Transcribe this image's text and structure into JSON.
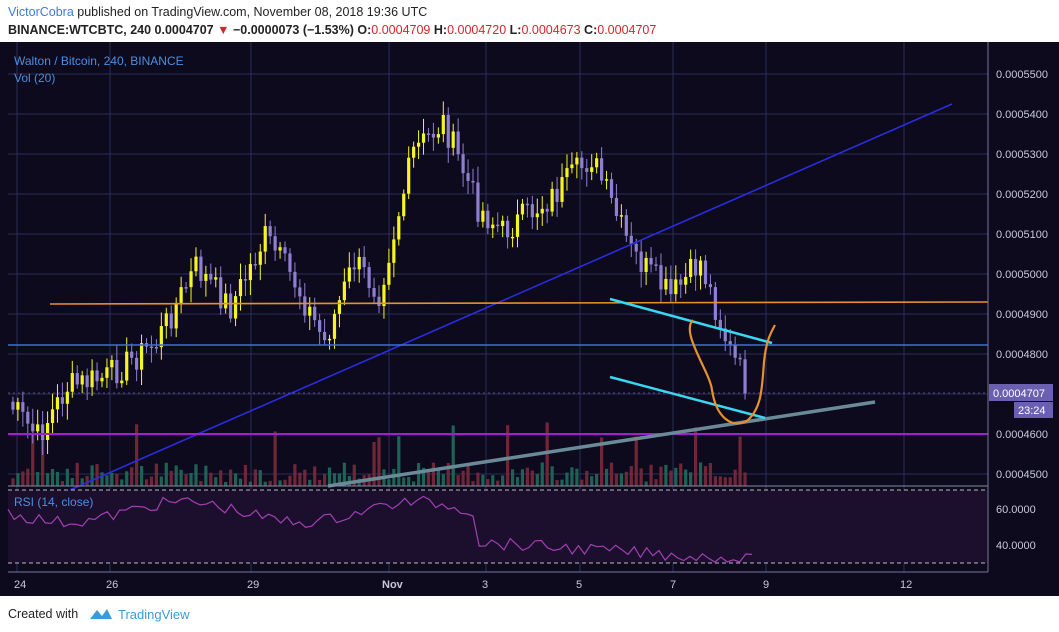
{
  "header": {
    "author": "VictorCobra",
    "published_text": "published on TradingView.com, November 08, 2018 19:36 UTC",
    "symbol": "BINANCE:WTCBTC, 240",
    "last": "0.0004707",
    "arrow": "▼",
    "change": "−0.0000073 (−1.53%)",
    "o_label": "O:",
    "o_value": "0.0004709",
    "h_label": "H:",
    "h_value": "0.0004720",
    "l_label": "L:",
    "l_value": "0.0004673",
    "c_label": "C:",
    "c_value": "0.0004707"
  },
  "legend": {
    "title": "Walton / Bitcoin, 240, BINANCE",
    "volume": "Vol (20)",
    "rsi": "RSI (14, close)"
  },
  "price_axis": {
    "labels": [
      "0.0005500",
      "0.0005400",
      "0.0005300",
      "0.0005200",
      "0.0005100",
      "0.0005000",
      "0.0004900",
      "0.0004800",
      "0.0004600",
      "0.0004500"
    ],
    "current_price": "0.0004707",
    "countdown": "23:24"
  },
  "rsi_axis": {
    "labels": [
      "60.0000",
      "40.0000"
    ]
  },
  "time_axis": {
    "labels": [
      "24",
      "26",
      "29",
      "Nov",
      "3",
      "5",
      "7",
      "9",
      "12"
    ]
  },
  "colors": {
    "background": "#0d0a1e",
    "grid": "#2c2c55",
    "candle_up": "#f5f522",
    "candle_down": "#8e7fd0",
    "trend_blue": "#2a2ce0",
    "orange_line": "#e8902a",
    "horizontal_blue": "#3a6fd8",
    "purple_line": "#a020d0",
    "cyan_channel": "#38d8f0",
    "gray_trend": "#6a8a98",
    "rsi_line": "#a040b0"
  },
  "footer": {
    "created_with": "Created with",
    "brand": "TradingView"
  }
}
